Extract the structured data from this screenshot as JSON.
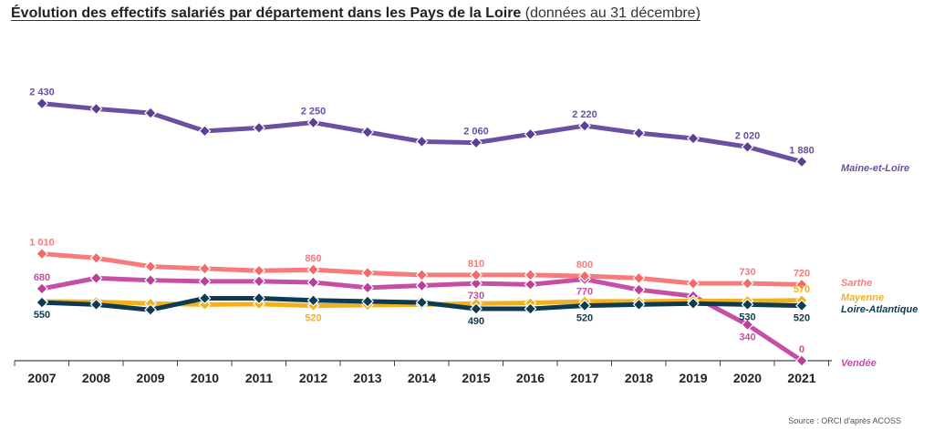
{
  "title": {
    "main": "Évolution des effectifs salariés par département dans les Pays de la Loire",
    "sub": " (données au 31 décembre)"
  },
  "source": "Source : ORCI d'après ACOSS",
  "chart_data": {
    "type": "line",
    "title": "Évolution des effectifs salariés par département dans les Pays de la Loire (données au 31 décembre)",
    "xlabel": "",
    "ylabel": "",
    "ylim": [
      0,
      2500
    ],
    "grid": false,
    "legend": "right-end labels",
    "categories": [
      "2007",
      "2008",
      "2009",
      "2010",
      "2011",
      "2012",
      "2013",
      "2014",
      "2015",
      "2016",
      "2017",
      "2018",
      "2019",
      "2020",
      "2021"
    ],
    "series": [
      {
        "name": "Maine-et-Loire",
        "color": "#6b4fa0",
        "marker_color": "#5a3f92",
        "values": [
          2430,
          2380,
          2340,
          2170,
          2200,
          2250,
          2160,
          2070,
          2060,
          2140,
          2220,
          2150,
          2100,
          2020,
          1880
        ],
        "labels": [
          "2 430",
          "",
          "",
          "",
          "",
          "2 250",
          "",
          "",
          "2 060",
          "",
          "2 220",
          "",
          "",
          "2 020",
          "1 880"
        ],
        "label_pos": [
          "above",
          "",
          "",
          "",
          "",
          "above",
          "",
          "",
          "above",
          "",
          "above",
          "",
          "",
          "above",
          "above"
        ]
      },
      {
        "name": "Sarthe",
        "color": "#f77b7b",
        "marker_color": "#f26a6a",
        "values": [
          1010,
          970,
          890,
          870,
          850,
          860,
          830,
          810,
          810,
          810,
          800,
          780,
          730,
          730,
          720
        ],
        "labels": [
          "1 010",
          "",
          "",
          "",
          "",
          "860",
          "",
          "",
          "810",
          "",
          "800",
          "",
          "",
          "730",
          "720"
        ],
        "label_pos": [
          "above",
          "",
          "",
          "",
          "",
          "above",
          "",
          "",
          "above",
          "",
          "above",
          "",
          "",
          "above",
          "above"
        ]
      },
      {
        "name": "Vendée",
        "color": "#c54fa5",
        "marker_color": "#b8409a",
        "values": [
          680,
          780,
          760,
          750,
          750,
          740,
          690,
          710,
          730,
          720,
          770,
          670,
          610,
          340,
          0
        ],
        "labels": [
          "680",
          "",
          "",
          "",
          "",
          "",
          "",
          "",
          "730",
          "",
          "770",
          "",
          "",
          "340",
          "0"
        ],
        "label_pos": [
          "above",
          "",
          "",
          "",
          "",
          "",
          "",
          "",
          "below",
          "",
          "below",
          "",
          "",
          "below",
          "above"
        ]
      },
      {
        "name": "Mayenne",
        "color": "#f2b01e",
        "marker_color": "#f2b01e",
        "values": [
          560,
          555,
          540,
          530,
          535,
          520,
          525,
          530,
          540,
          545,
          560,
          560,
          565,
          565,
          570
        ],
        "labels": [
          "",
          "",
          "",
          "",
          "",
          "520",
          "",
          "",
          "",
          "",
          "",
          "",
          "",
          "",
          "570"
        ],
        "label_pos": [
          "",
          "",
          "",
          "",
          "",
          "below",
          "",
          "",
          "",
          "",
          "",
          "",
          "",
          "",
          "above"
        ]
      },
      {
        "name": "Loire-Atlantique",
        "color": "#0d3b53",
        "marker_color": "#0d3b53",
        "values": [
          550,
          530,
          480,
          590,
          590,
          570,
          560,
          550,
          490,
          490,
          520,
          530,
          540,
          530,
          520
        ],
        "labels": [
          "550",
          "",
          "",
          "",
          "",
          "",
          "",
          "",
          "490",
          "",
          "520",
          "",
          "",
          "530",
          "520"
        ],
        "label_pos": [
          "below",
          "",
          "",
          "",
          "",
          "",
          "",
          "",
          "below",
          "",
          "below",
          "",
          "",
          "below",
          "below"
        ]
      }
    ]
  }
}
